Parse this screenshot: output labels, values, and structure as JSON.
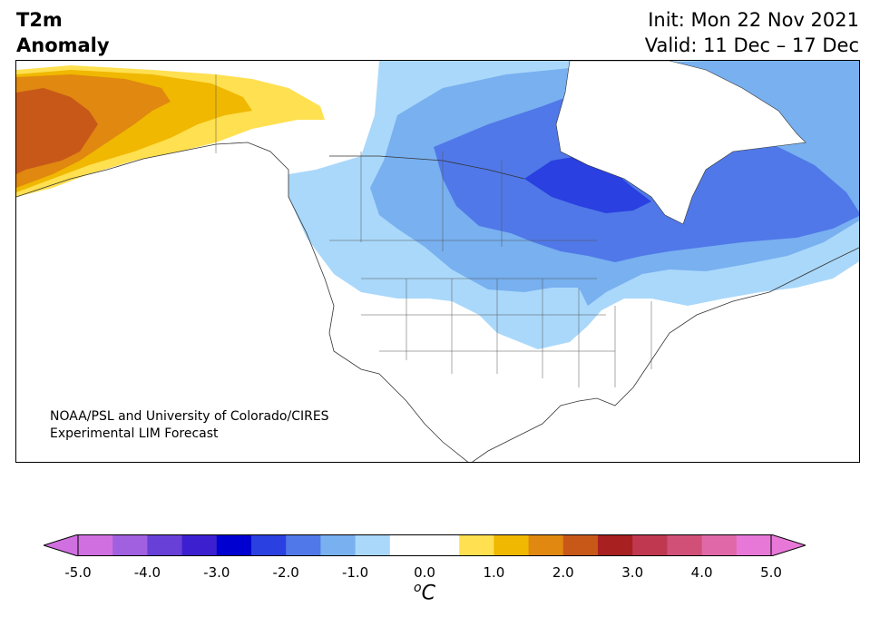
{
  "header": {
    "title_line1": "T2m",
    "title_line2": "Anomaly",
    "init": "Init: Mon 22 Nov 2021",
    "valid": "Valid: 11 Dec – 17 Dec"
  },
  "credit": {
    "line1": "NOAA/PSL and University of Colorado/CIRES",
    "line2": "Experimental LIM Forecast"
  },
  "colorbar": {
    "unit_symbol": "o",
    "unit_letter": "C",
    "ticks": [
      "-5.0",
      "-4.0",
      "-3.0",
      "-2.0",
      "-1.0",
      "0.0",
      "1.0",
      "2.0",
      "3.0",
      "4.0",
      "5.0"
    ],
    "colors": [
      "#d070e0",
      "#a060e0",
      "#6840d8",
      "#3c20d0",
      "#0000d0",
      "#2a40e0",
      "#5078e8",
      "#78b0f0",
      "#aad8fa",
      "#ffffff",
      "#ffffff",
      "#ffe050",
      "#f0b800",
      "#e08810",
      "#c85818",
      "#a82020",
      "#c03850",
      "#d05078",
      "#e068a8",
      "#e878d8"
    ],
    "under_color": "#d070e0",
    "over_color": "#e878d8"
  },
  "map": {
    "cold_core_region": "Hudson Bay / Quebec",
    "warm_core_region": "Alaska"
  }
}
